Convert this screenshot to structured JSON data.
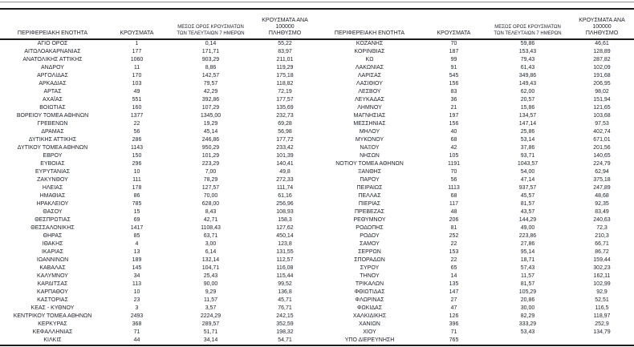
{
  "table": {
    "headers": [
      "ΠΕΡΙΦΕΡΕΙΑΚΗ ΕΝΟΤΗΤΑ",
      "ΚΡΟΥΣΜΑΤΑ",
      "ΜΕΣΟΣ ΟΡΟΣ ΚΡΟΥΣΜΑΤΩΝ\nΤΩΝ ΤΕΛΕΥΤΑΙΩΝ 7 ΗΜΕΡΩΝ",
      "ΚΡΟΥΣΜΑΤΑ ΑΝΑ 100000\nΠΛΗΘΥΣΜΟ"
    ],
    "left_rows": [
      [
        "ΑΓΙΟ ΟΡΟΣ",
        "1",
        "0,14",
        "55,22"
      ],
      [
        "ΑΙΤΩΛΟΑΚΑΡΝΑΝΙΑΣ",
        "177",
        "171,71",
        "83,97"
      ],
      [
        "ΑΝΑΤΟΛΙΚΗΣ ΑΤΤΙΚΗΣ",
        "1060",
        "903,29",
        "211,01"
      ],
      [
        "ΑΝΔΡΟΥ",
        "11",
        "8,86",
        "119,29"
      ],
      [
        "ΑΡΓΟΛΙΔΑΣ",
        "170",
        "142,57",
        "175,18"
      ],
      [
        "ΑΡΚΑΔΙΑΣ",
        "103",
        "79,57",
        "118,82"
      ],
      [
        "ΑΡΤΑΣ",
        "49",
        "42,29",
        "72,19"
      ],
      [
        "ΑΧΑΪΑΣ",
        "551",
        "392,86",
        "177,57"
      ],
      [
        "ΒΟΙΩΤΙΑΣ",
        "160",
        "107,29",
        "135,69"
      ],
      [
        "ΒΟΡΕΙΟΥ ΤΟΜΕΑ ΑΘΗΝΩΝ",
        "1377",
        "1345,00",
        "232,73"
      ],
      [
        "ΓΡΕΒΕΝΩΝ",
        "22",
        "19,29",
        "69,28"
      ],
      [
        "ΔΡΑΜΑΣ",
        "56",
        "45,14",
        "56,98"
      ],
      [
        "ΔΥΤΙΚΗΣ ΑΤΤΙΚΗΣ",
        "286",
        "246,86",
        "177,72"
      ],
      [
        "ΔΥΤΙΚΟΥ ΤΟΜΕΑ ΑΘΗΝΩΝ",
        "1143",
        "950,29",
        "233,42"
      ],
      [
        "ΕΒΡΟΥ",
        "150",
        "101,29",
        "101,39"
      ],
      [
        "ΕΥΒΟΙΑΣ",
        "296",
        "223,29",
        "140,41"
      ],
      [
        "ΕΥΡΥΤΑΝΙΑΣ",
        "10",
        "7,00",
        "49,8"
      ],
      [
        "ΖΑΚΥΝΘΟΥ",
        "111",
        "78,29",
        "272,33"
      ],
      [
        "ΗΛΕΙΑΣ",
        "178",
        "127,57",
        "111,74"
      ],
      [
        "ΗΜΑΘΙΑΣ",
        "86",
        "70,00",
        "61,16"
      ],
      [
        "ΗΡΑΚΛΕΙΟΥ",
        "785",
        "628,00",
        "256,96"
      ],
      [
        "ΘΑΣΟΥ",
        "15",
        "8,43",
        "108,93"
      ],
      [
        "ΘΕΣΠΡΩΤΙΑΣ",
        "69",
        "42,71",
        "158,3"
      ],
      [
        "ΘΕΣΣΑΛΟΝΙΚΗΣ",
        "1417",
        "1108,43",
        "127,62"
      ],
      [
        "ΘΗΡΑΣ",
        "85",
        "63,71",
        "450,14"
      ],
      [
        "ΙΘΑΚΗΣ",
        "4",
        "3,00",
        "123,8"
      ],
      [
        "ΙΚΑΡΙΑΣ",
        "13",
        "6,14",
        "131,55"
      ],
      [
        "ΙΩΑΝΝΙΝΩΝ",
        "189",
        "132,14",
        "112,57"
      ],
      [
        "ΚΑΒΑΛΑΣ",
        "145",
        "104,71",
        "116,08"
      ],
      [
        "ΚΑΛΥΜΝΟΥ",
        "34",
        "25,43",
        "115,44"
      ],
      [
        "ΚΑΡΔΙΤΣΑΣ",
        "113",
        "90,00",
        "99,52"
      ],
      [
        "ΚΑΡΠΑΘΟΥ",
        "10",
        "9,29",
        "136,8"
      ],
      [
        "ΚΑΣΤΟΡΙΑΣ",
        "23",
        "11,57",
        "45,71"
      ],
      [
        "ΚΕΑΣ - ΚΥΘΝΟΥ",
        "3",
        "3,57",
        "76,71"
      ],
      [
        "ΚΕΝΤΡΙΚΟΥ ΤΟΜΕΑ ΑΘΗΝΩΝ",
        "2493",
        "2224,29",
        "242,15"
      ],
      [
        "ΚΕΡΚΥΡΑΣ",
        "368",
        "289,57",
        "352,59"
      ],
      [
        "ΚΕΦΑΛΛΗΝΙΑΣ",
        "71",
        "51,71",
        "198,32"
      ],
      [
        "ΚΙΛΚΙΣ",
        "44",
        "34,14",
        "54,71"
      ]
    ],
    "right_rows": [
      [
        "ΚΟΖΑΝΗΣ",
        "70",
        "59,86",
        "46,61"
      ],
      [
        "ΚΟΡΙΝΘΙΑΣ",
        "187",
        "153,43",
        "128,89"
      ],
      [
        "ΚΩ",
        "99",
        "79,43",
        "287,82"
      ],
      [
        "ΛΑΚΩΝΙΑΣ",
        "91",
        "61,43",
        "102,09"
      ],
      [
        "ΛΑΡΙΣΑΣ",
        "545",
        "349,86",
        "191,68"
      ],
      [
        "ΛΑΣΙΘΙΟΥ",
        "156",
        "149,43",
        "206,95"
      ],
      [
        "ΛΕΣΒΟΥ",
        "83",
        "62,00",
        "98,02"
      ],
      [
        "ΛΕΥΚΑΔΑΣ",
        "36",
        "20,57",
        "151,94"
      ],
      [
        "ΛΗΜΝΟΥ",
        "21",
        "15,86",
        "121,65"
      ],
      [
        "ΜΑΓΝΗΣΙΑΣ",
        "197",
        "134,57",
        "103,68"
      ],
      [
        "ΜΕΣΣΗΝΙΑΣ",
        "156",
        "147,14",
        "97,53"
      ],
      [
        "ΜΗΛΟΥ",
        "40",
        "25,86",
        "402,74"
      ],
      [
        "ΜΥΚΟΝΟΥ",
        "68",
        "53,14",
        "671,01"
      ],
      [
        "ΝΑΞΟΥ",
        "42",
        "37,86",
        "201,56"
      ],
      [
        "ΝΗΣΩΝ",
        "105",
        "93,71",
        "140,65"
      ],
      [
        "ΝΟΤΙΟΥ ΤΟΜΕΑ ΑΘΗΝΩΝ",
        "1191",
        "1043,57",
        "224,79"
      ],
      [
        "ΞΑΝΘΗΣ",
        "70",
        "54,00",
        "62,94"
      ],
      [
        "ΠΑΡΟΥ",
        "56",
        "47,14",
        "375,18"
      ],
      [
        "ΠΕΙΡΑΙΩΣ",
        "1113",
        "937,57",
        "247,89"
      ],
      [
        "ΠΕΛΛΑΣ",
        "68",
        "45,57",
        "48,68"
      ],
      [
        "ΠΙΕΡΙΑΣ",
        "117",
        "81,57",
        "92,35"
      ],
      [
        "ΠΡΕΒΕΖΑΣ",
        "48",
        "43,57",
        "83,49"
      ],
      [
        "ΡΕΘΥΜΝΟΥ",
        "206",
        "144,29",
        "240,63"
      ],
      [
        "ΡΟΔΟΠΗΣ",
        "81",
        "49,00",
        "72,3"
      ],
      [
        "ΡΟΔΟΥ",
        "252",
        "223,86",
        "210,3"
      ],
      [
        "ΣΑΜΟΥ",
        "22",
        "27,86",
        "66,71"
      ],
      [
        "ΣΕΡΡΩΝ",
        "153",
        "95,14",
        "86,72"
      ],
      [
        "ΣΠΟΡΑΔΩΝ",
        "22",
        "18,71",
        "159,44"
      ],
      [
        "ΣΥΡΟΥ",
        "65",
        "57,43",
        "302,23"
      ],
      [
        "ΤΗΝΟΥ",
        "14",
        "11,57",
        "162,11"
      ],
      [
        "ΤΡΙΚΑΛΩΝ",
        "135",
        "81,57",
        "102,99"
      ],
      [
        "ΦΘΙΩΤΙΔΑΣ",
        "147",
        "105,29",
        "92,9"
      ],
      [
        "ΦΛΩΡΙΝΑΣ",
        "27",
        "20,86",
        "52,51"
      ],
      [
        "ΦΩΚΙΔΑΣ",
        "47",
        "30,00",
        "116,5"
      ],
      [
        "ΧΑΛΚΙΔΙΚΗΣ",
        "126",
        "82,29",
        "118,97"
      ],
      [
        "ΧΑΝΙΩΝ",
        "396",
        "333,29",
        "252,9"
      ],
      [
        "ΧΙΟΥ",
        "71",
        "53,43",
        "134,79"
      ],
      [
        "ΥΠΟ ΔΙΕΡΕΥΝΗΣΗ",
        "765",
        "",
        ""
      ]
    ]
  },
  "colors": {
    "text": "#1c1e29",
    "heavy_rule": "#1a1a1a",
    "thin_rule": "#8f8f8f"
  }
}
